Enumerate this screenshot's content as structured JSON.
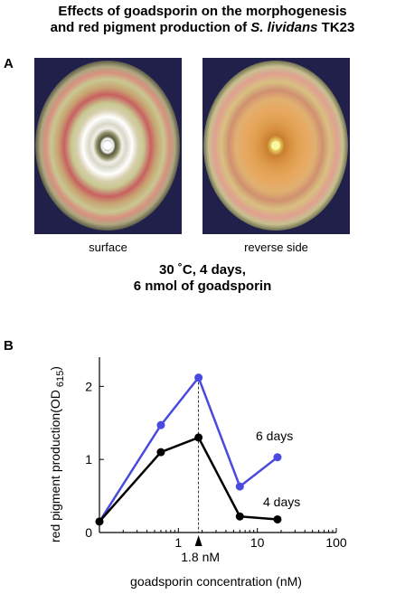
{
  "title": {
    "line1": "Effects of goadsporin on the morphogenesis",
    "line2_prefix": "and red pigment production of ",
    "line2_species": "S. lividans",
    "line2_suffix": " TK23"
  },
  "panel_a": {
    "label": "A",
    "plates": [
      {
        "label": "surface"
      },
      {
        "label": "reverse side"
      }
    ],
    "conditions": [
      "30 ˚C, 4 days,",
      "6 nmol of goadsporin"
    ]
  },
  "panel_b": {
    "label": "B"
  },
  "colors": {
    "six_days": "#4a4ae0",
    "four_days": "#000000"
  },
  "chart_data": {
    "type": "line",
    "xlabel": "goadsporin concentration (nM)",
    "ylabel": "red pigment production(OD",
    "ylabel_sub": "615",
    "ylabel_close": ")",
    "x_scale": "log",
    "xlim": [
      0.1,
      100
    ],
    "ylim": [
      0,
      2.4
    ],
    "x_ticks": [
      1,
      10,
      100
    ],
    "y_ticks": [
      0,
      1,
      2
    ],
    "series": [
      {
        "name": "6 days",
        "x": [
          0.1,
          0.6,
          1.8,
          6,
          18
        ],
        "y": [
          0.15,
          1.47,
          2.12,
          0.63,
          1.03
        ]
      },
      {
        "name": "4 days",
        "x": [
          0.1,
          0.6,
          1.8,
          6,
          18
        ],
        "y": [
          0.15,
          1.1,
          1.3,
          0.22,
          0.18
        ]
      }
    ],
    "annotation": {
      "label": "1.8 nM",
      "x": 1.8
    }
  }
}
